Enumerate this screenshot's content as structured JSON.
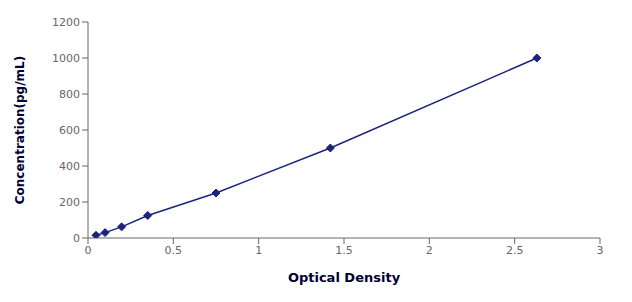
{
  "chart_data": {
    "type": "line",
    "x": [
      0.047,
      0.1,
      0.197,
      0.35,
      0.75,
      1.42,
      2.63
    ],
    "values": [
      15,
      30,
      62,
      125,
      250,
      500,
      1000
    ],
    "color": "#1a237e",
    "marker": "diamond",
    "line_style": "solid",
    "xlabel": "Optical Density",
    "ylabel": "Concentration(pg/mL)",
    "xlim": [
      0,
      3
    ],
    "ylim": [
      0,
      1200
    ],
    "xticks": [
      0,
      0.5,
      1,
      1.5,
      2,
      2.5,
      3
    ],
    "yticks": [
      0,
      200,
      400,
      600,
      800,
      1000,
      1200
    ],
    "grid": false
  }
}
